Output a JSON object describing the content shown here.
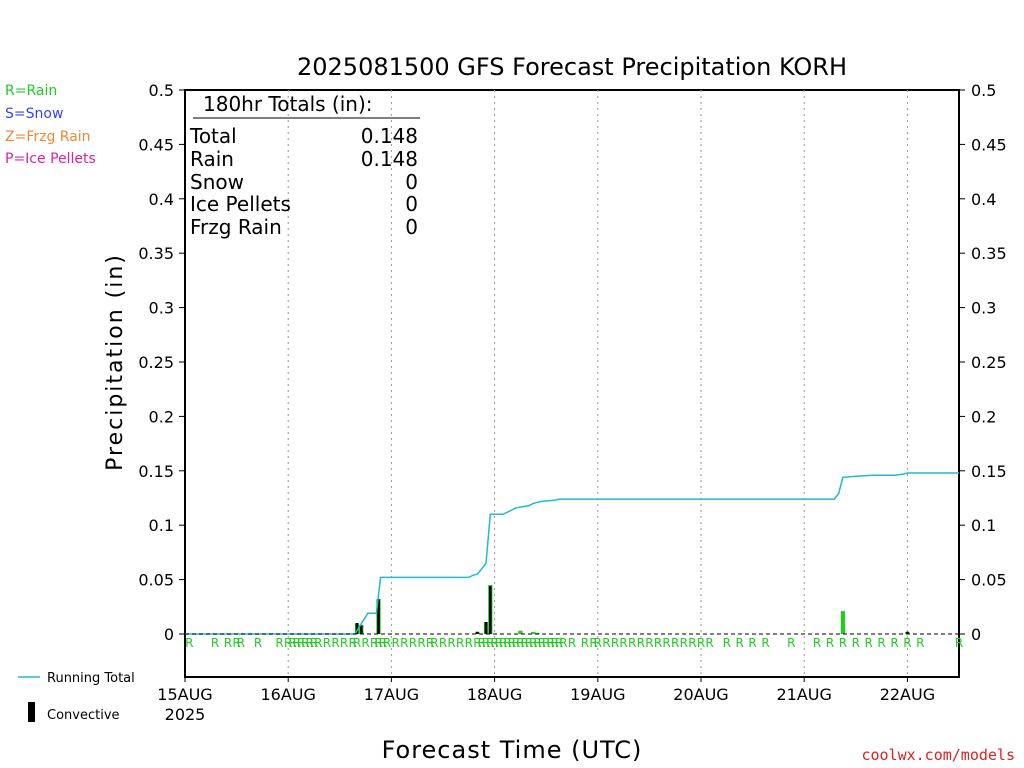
{
  "title": "2025081500 GFS Forecast Precipitation KORH",
  "colors": {
    "rain": "#22cc22",
    "snow": "#3344ee",
    "frzg_rain": "#ee8833",
    "ice_pellets": "#dd2299",
    "running_total": "#22bbcc",
    "convective": "#000000",
    "credit": "#dd2222"
  },
  "legend_left": {
    "rain": "R=Rain",
    "snow": "S=Snow",
    "frzg_rain": "Z=Frzg Rain",
    "ice_pellets": "P=Ice Pellets"
  },
  "legend_bottom": {
    "running_total": "Running Total",
    "convective": "Convective"
  },
  "totals": {
    "header": "180hr Totals (in):",
    "rows": [
      {
        "label": "Total",
        "value": "0.148"
      },
      {
        "label": "Rain",
        "value": "0.148"
      },
      {
        "label": "Snow",
        "value": "0"
      },
      {
        "label": "Ice Pellets",
        "value": "0"
      },
      {
        "label": "Frzg Rain",
        "value": "0"
      }
    ]
  },
  "credit": "coolwx.com/models",
  "chart_data": {
    "type": "bar",
    "title": "2025081500 GFS Forecast Precipitation KORH",
    "ylabel": "Precipitation (in)",
    "xlabel": "Forecast Time (UTC)",
    "ylim": [
      0,
      0.5
    ],
    "xlim_hours": [
      0,
      180
    ],
    "y_ticks": [
      "0",
      "0.05",
      "0.1",
      "0.15",
      "0.2",
      "0.25",
      "0.3",
      "0.35",
      "0.4",
      "0.45",
      "0.5"
    ],
    "x_ticks": [
      {
        "hour": 0,
        "label": "15AUG",
        "sublabel": "2025"
      },
      {
        "hour": 24,
        "label": "16AUG"
      },
      {
        "hour": 48,
        "label": "17AUG"
      },
      {
        "hour": 72,
        "label": "18AUG"
      },
      {
        "hour": 96,
        "label": "19AUG"
      },
      {
        "hour": 120,
        "label": "20AUG"
      },
      {
        "hour": 144,
        "label": "21AUG"
      },
      {
        "hour": 168,
        "label": "22AUG"
      }
    ],
    "grid": "vertical dotted at day boundaries",
    "precip_bars": [
      {
        "hour": 40,
        "value": 0.01,
        "convective": 0.01
      },
      {
        "hour": 41,
        "value": 0.008,
        "convective": 0.008
      },
      {
        "hour": 45,
        "value": 0.032,
        "convective": 0.032
      },
      {
        "hour": 68,
        "value": 0.002,
        "convective": 0.002
      },
      {
        "hour": 70,
        "value": 0.011,
        "convective": 0.011
      },
      {
        "hour": 71,
        "value": 0.045,
        "convective": 0.044
      },
      {
        "hour": 78,
        "value": 0.003,
        "convective": 0
      },
      {
        "hour": 81,
        "value": 0.002,
        "convective": 0
      },
      {
        "hour": 82,
        "value": 0.001,
        "convective": 0
      },
      {
        "hour": 153,
        "value": 0.021,
        "convective": 0
      },
      {
        "hour": 168,
        "value": 0.002,
        "convective": 0.002
      }
    ],
    "running_total": {
      "name": "Running Total",
      "x": [
        0,
        39.5,
        42.5,
        44.5,
        45.5,
        62,
        64,
        66,
        67,
        68,
        70,
        71,
        74,
        76,
        77,
        80,
        81,
        83,
        86,
        87,
        140,
        151,
        152,
        153,
        156,
        160,
        165,
        167,
        168,
        170,
        180
      ],
      "y": [
        0,
        0,
        0.019,
        0.019,
        0.052,
        0.052,
        0.052,
        0.052,
        0.054,
        0.055,
        0.065,
        0.11,
        0.11,
        0.114,
        0.116,
        0.118,
        0.12,
        0.122,
        0.123,
        0.124,
        0.124,
        0.124,
        0.129,
        0.144,
        0.145,
        0.146,
        0.146,
        0.147,
        0.148,
        0.148,
        0.148
      ]
    },
    "ptype_markers": {
      "symbol": "R",
      "hours": [
        1,
        7,
        10,
        12,
        13,
        17,
        22,
        24,
        25,
        26,
        27,
        28,
        29,
        30,
        31,
        33,
        35,
        37,
        39,
        40,
        42,
        44,
        45,
        46,
        47,
        49,
        51,
        53,
        55,
        57,
        58,
        60,
        62,
        64,
        66,
        68,
        69,
        70,
        71,
        72,
        73,
        74,
        75,
        76,
        77,
        78,
        79,
        80,
        81,
        82,
        83,
        84,
        85,
        86,
        87,
        88,
        90,
        93,
        95,
        96,
        98,
        100,
        102,
        104,
        106,
        108,
        110,
        112,
        114,
        116,
        118,
        120,
        122,
        126,
        129,
        132,
        135,
        141,
        147,
        150,
        153,
        156,
        159,
        162,
        165,
        168,
        171,
        180
      ]
    }
  }
}
